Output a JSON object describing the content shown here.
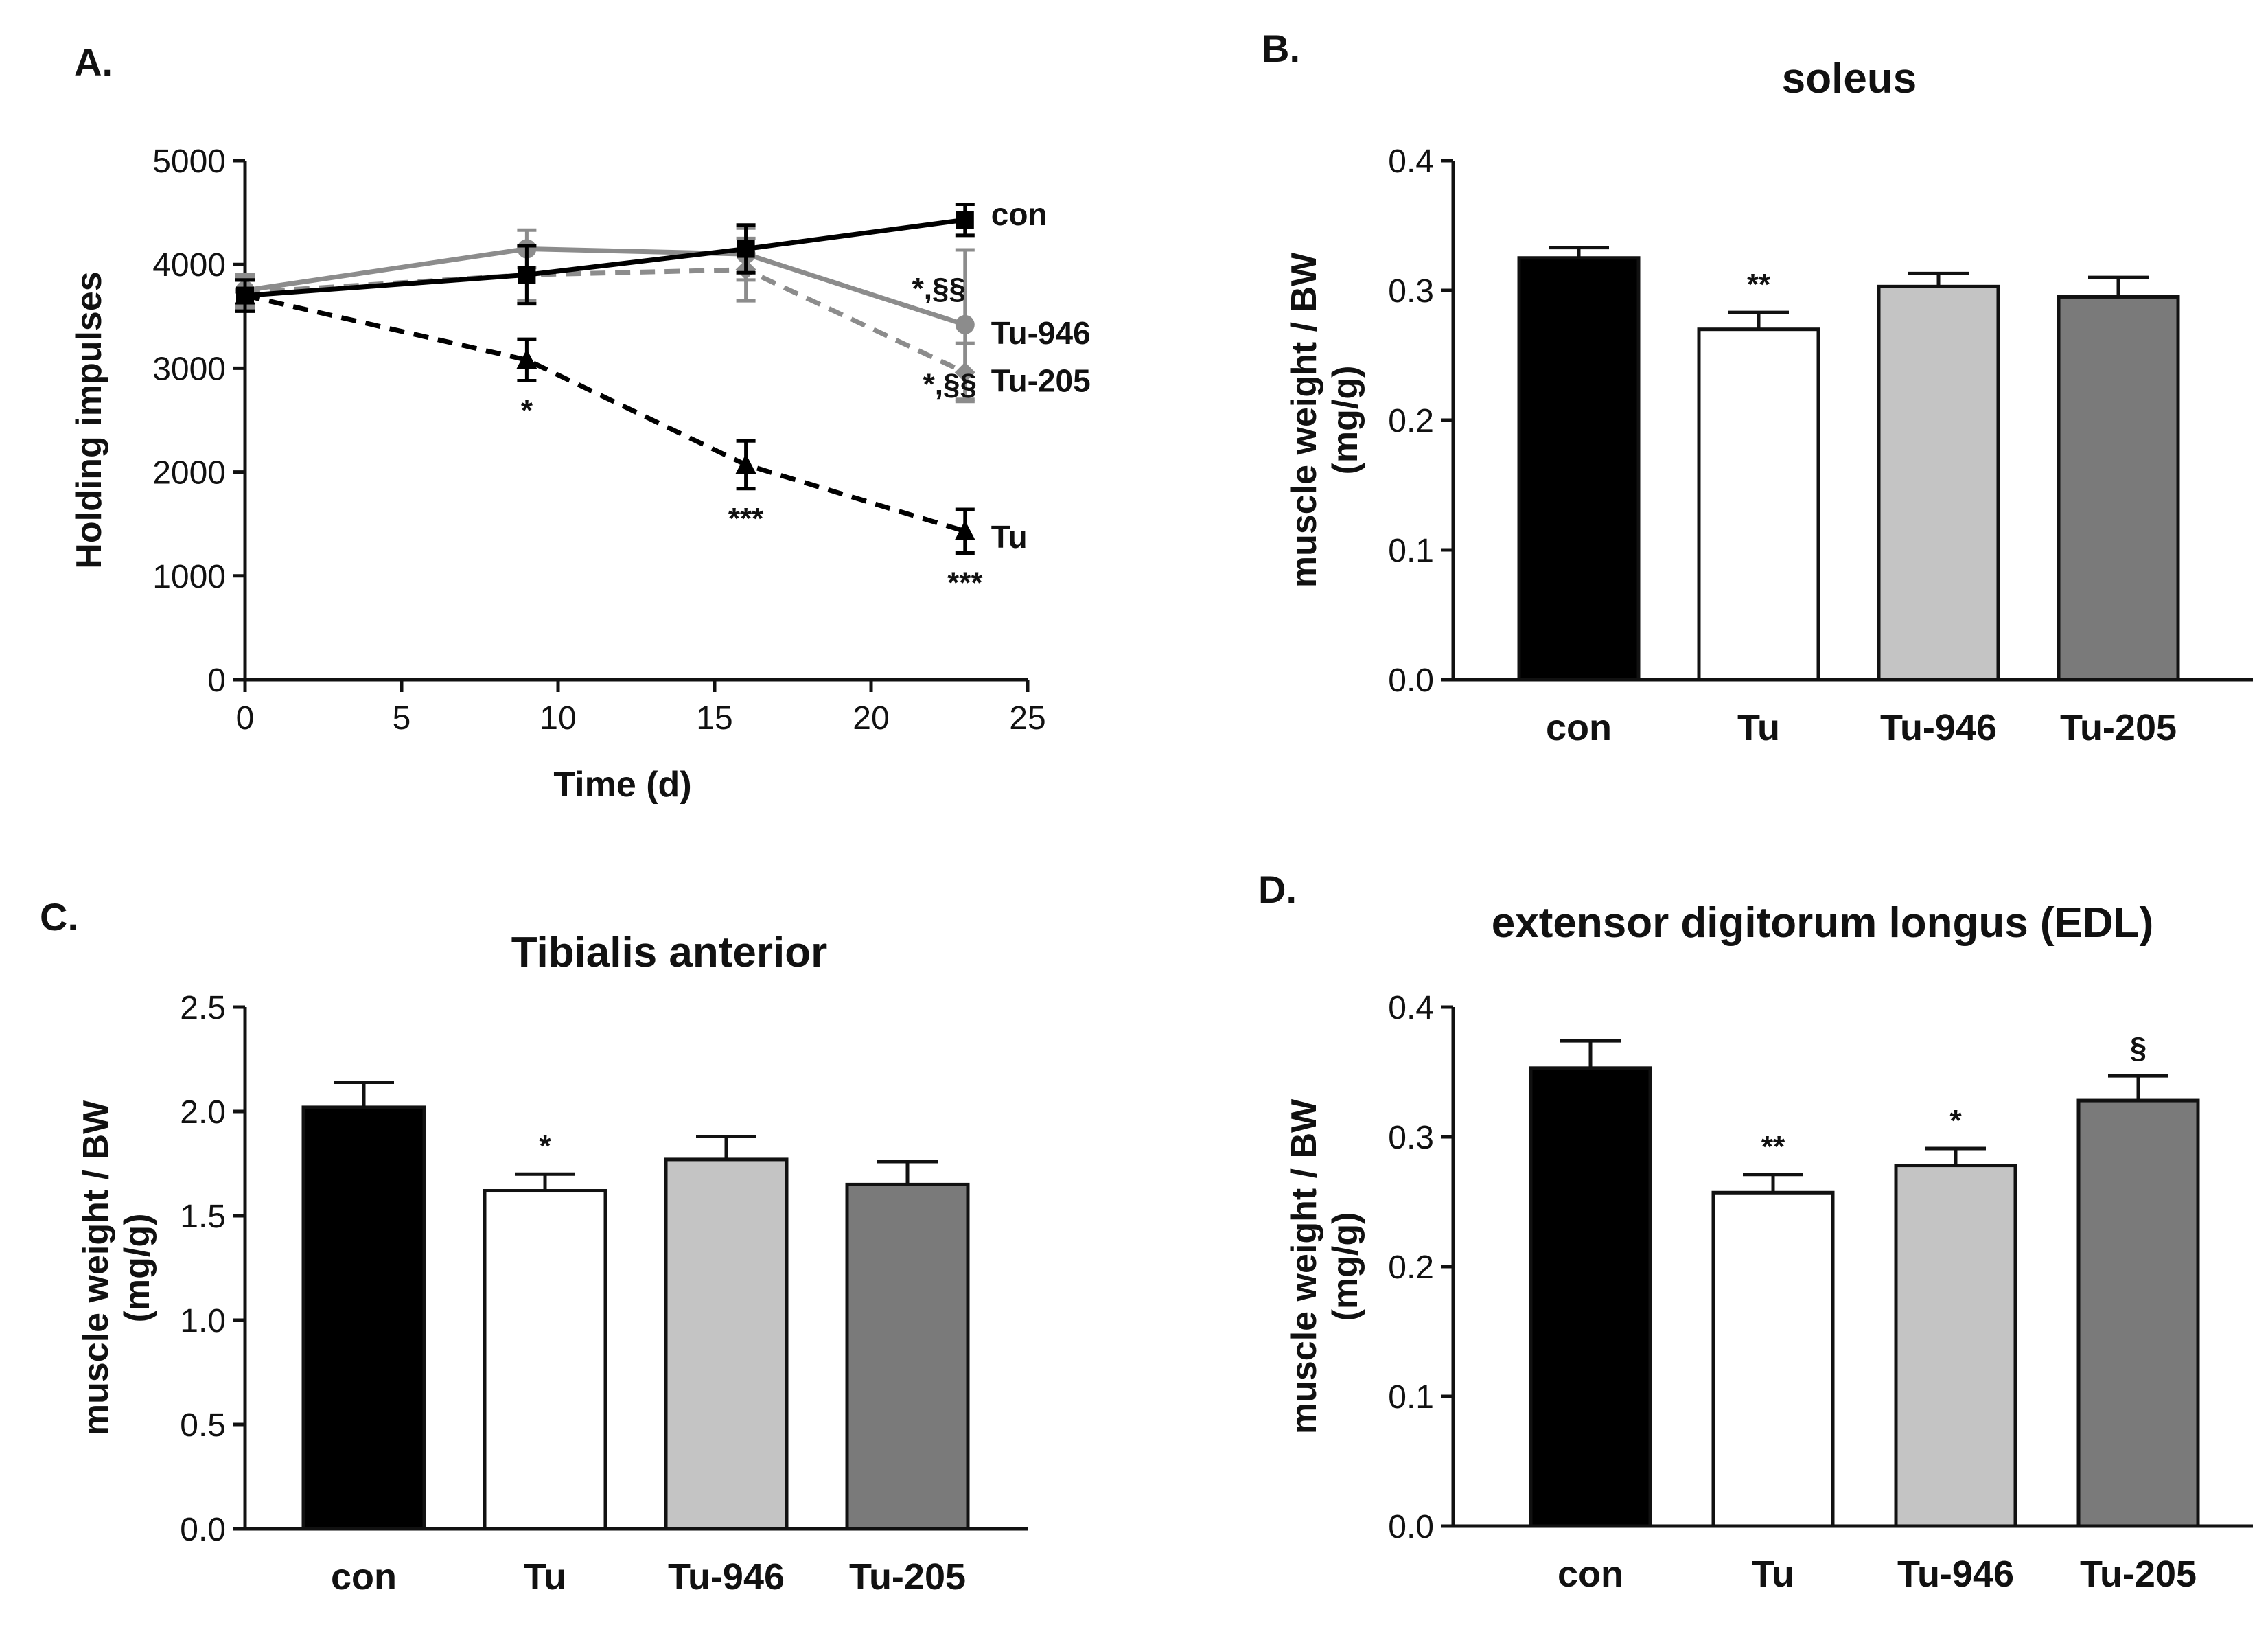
{
  "colors": {
    "con": "#000000",
    "tu_bar": "#ffffff",
    "tu946": "#c4c4c4",
    "tu205": "#7a7a7a",
    "line_gray": "#8c8c8c",
    "axis": "#111111"
  },
  "chart_data": [
    {
      "panel": "A.",
      "type": "line",
      "title": "",
      "xlabel": "Time (d)",
      "ylabel": "Holding impulses",
      "xlim": [
        0,
        25
      ],
      "ylim": [
        0,
        5000
      ],
      "xticks": [
        "0",
        "5",
        "10",
        "15",
        "20",
        "25"
      ],
      "yticks": [
        "0",
        "1000",
        "2000",
        "3000",
        "4000",
        "5000"
      ],
      "series": [
        {
          "name": "con",
          "x": [
            0,
            9,
            16,
            23
          ],
          "y": [
            3700,
            3900,
            4150,
            4430
          ],
          "err": [
            150,
            280,
            230,
            150
          ],
          "style": "solid",
          "color": "#000000",
          "marker": "square",
          "sig": [
            "",
            "",
            "",
            ""
          ]
        },
        {
          "name": "Tu-946",
          "x": [
            0,
            9,
            16,
            23
          ],
          "y": [
            3750,
            4150,
            4100,
            3420
          ],
          "err": [
            150,
            180,
            250,
            720
          ],
          "style": "solid",
          "color": "#8c8c8c",
          "marker": "circle",
          "sig": [
            "",
            "",
            "",
            "*,§§"
          ]
        },
        {
          "name": "Tu-205",
          "x": [
            0,
            9,
            16,
            23
          ],
          "y": [
            3730,
            3900,
            3950,
            2960
          ],
          "err": [
            150,
            250,
            300,
            280
          ],
          "style": "dashed",
          "color": "#8c8c8c",
          "marker": "diamond",
          "sig": [
            "",
            "",
            "",
            "*,§§"
          ]
        },
        {
          "name": "Tu",
          "x": [
            0,
            9,
            16,
            23
          ],
          "y": [
            3700,
            3080,
            2070,
            1430
          ],
          "err": [
            150,
            200,
            230,
            210
          ],
          "style": "dashed",
          "color": "#000000",
          "marker": "triangle",
          "sig": [
            "",
            "*",
            "***",
            "***"
          ]
        }
      ]
    },
    {
      "panel": "B.",
      "type": "bar",
      "title": "soleus",
      "xlabel": "",
      "ylabel": "muscle weight / BW",
      "ylabel2": "(mg/g)",
      "categories": [
        "con",
        "Tu",
        "Tu-946",
        "Tu-205"
      ],
      "values": [
        0.325,
        0.27,
        0.303,
        0.295
      ],
      "errors": [
        0.008,
        0.013,
        0.01,
        0.015
      ],
      "sig": [
        "",
        "**",
        "",
        ""
      ],
      "ylim": [
        0,
        0.4
      ],
      "yticks": [
        "0.0",
        "0.1",
        "0.2",
        "0.3",
        "0.4"
      ]
    },
    {
      "panel": "C.",
      "type": "bar",
      "title": "Tibialis anterior",
      "xlabel": "",
      "ylabel": "muscle weight / BW",
      "ylabel2": "(mg/g)",
      "categories": [
        "con",
        "Tu",
        "Tu-946",
        "Tu-205"
      ],
      "values": [
        2.02,
        1.62,
        1.77,
        1.65
      ],
      "errors": [
        0.12,
        0.08,
        0.11,
        0.11
      ],
      "sig": [
        "",
        "*",
        "",
        ""
      ],
      "ylim": [
        0,
        2.5
      ],
      "yticks": [
        "0.0",
        "0.5",
        "1.0",
        "1.5",
        "2.0",
        "2.5"
      ]
    },
    {
      "panel": "D.",
      "type": "bar",
      "title": "extensor digitorum longus (EDL)",
      "xlabel": "",
      "ylabel": "muscle weight / BW",
      "ylabel2": "(mg/g)",
      "categories": [
        "con",
        "Tu",
        "Tu-946",
        "Tu-205"
      ],
      "values": [
        0.353,
        0.257,
        0.278,
        0.328
      ],
      "errors": [
        0.021,
        0.014,
        0.013,
        0.019
      ],
      "sig": [
        "",
        "**",
        "*",
        "§"
      ],
      "ylim": [
        0,
        0.4
      ],
      "yticks": [
        "0.0",
        "0.1",
        "0.2",
        "0.3",
        "0.4"
      ]
    }
  ]
}
